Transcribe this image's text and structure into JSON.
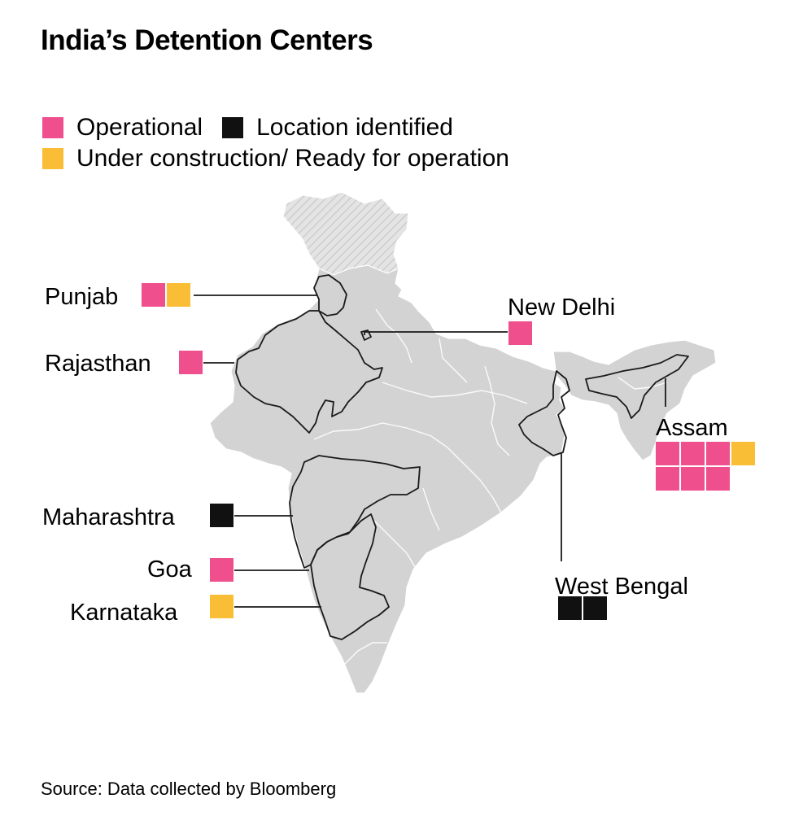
{
  "title": "India’s Detention Centers",
  "source": "Source: Data collected by Bloomberg",
  "colors": {
    "operational": "#ef4f8c",
    "location_identified": "#111111",
    "under_construction": "#f9be35",
    "land": "#d3d3d3",
    "disputed": "#e2e2e2"
  },
  "legend": [
    {
      "key": "operational",
      "label": "Operational"
    },
    {
      "key": "location_identified",
      "label": "Location identified"
    },
    {
      "key": "under_construction",
      "label": "Under construction/ Ready for operation"
    }
  ],
  "states": [
    {
      "id": "punjab",
      "label": "Punjab",
      "centers": [
        "operational",
        "under_construction"
      ]
    },
    {
      "id": "new-delhi",
      "label": "New Delhi",
      "centers": [
        "operational"
      ]
    },
    {
      "id": "rajasthan",
      "label": "Rajasthan",
      "centers": [
        "operational"
      ]
    },
    {
      "id": "assam",
      "label": "Assam",
      "centers": [
        "operational",
        "operational",
        "operational",
        "under_construction",
        "operational",
        "operational",
        "operational"
      ]
    },
    {
      "id": "maharashtra",
      "label": "Maharashtra",
      "centers": [
        "location_identified"
      ]
    },
    {
      "id": "goa",
      "label": "Goa",
      "centers": [
        "operational"
      ]
    },
    {
      "id": "west-bengal",
      "label": "West Bengal",
      "centers": [
        "location_identified",
        "location_identified"
      ]
    },
    {
      "id": "karnataka",
      "label": "Karnataka",
      "centers": [
        "under_construction"
      ]
    }
  ]
}
